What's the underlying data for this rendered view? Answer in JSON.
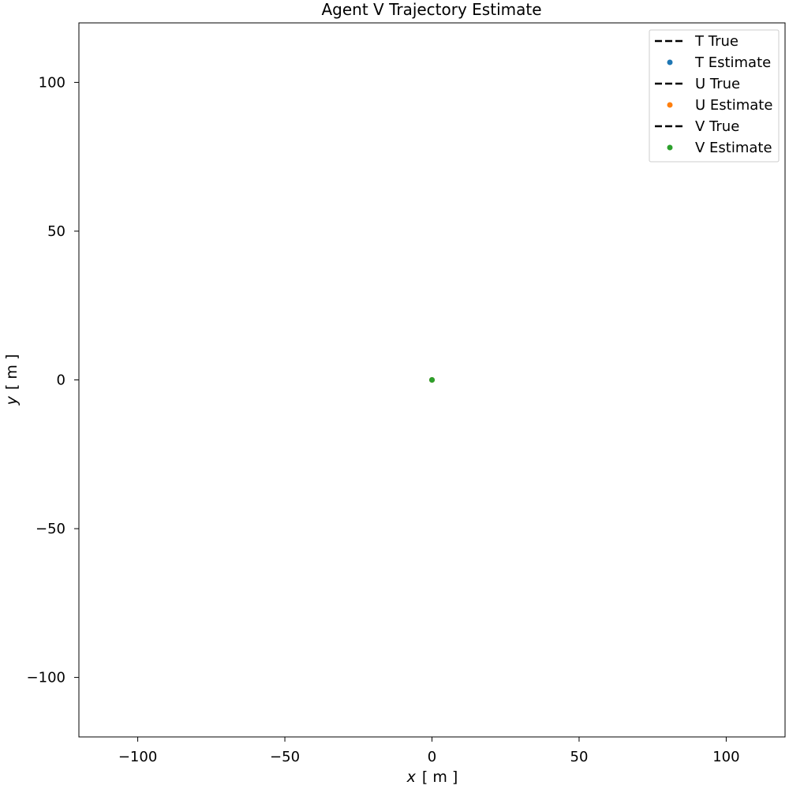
{
  "chart_data": {
    "type": "scatter",
    "title": "Agent V Trajectory Estimate",
    "xlabel": {
      "var": "x",
      "unit": "[ m ]"
    },
    "ylabel": {
      "var": "y",
      "unit": "[ m ]"
    },
    "xlim": [
      -120,
      120
    ],
    "ylim": [
      -120,
      120
    ],
    "xticks": [
      -100,
      -50,
      0,
      50,
      100
    ],
    "yticks": [
      -100,
      -50,
      0,
      50,
      100
    ],
    "xtick_labels": [
      "−100",
      "−50",
      "0",
      "50",
      "100"
    ],
    "ytick_labels": [
      "−100",
      "−50",
      "0",
      "50",
      "100"
    ],
    "grid": false,
    "legend_position": "top-right",
    "series": [
      {
        "name": "T True",
        "kind": "line",
        "style": "dashed",
        "color": "#000000",
        "points": [
          [
            0,
            0
          ]
        ]
      },
      {
        "name": "T Estimate",
        "kind": "marker",
        "color": "#1f77b4",
        "points": [
          [
            0,
            0
          ]
        ]
      },
      {
        "name": "U True",
        "kind": "line",
        "style": "dashed",
        "color": "#000000",
        "points": [
          [
            0,
            0
          ]
        ]
      },
      {
        "name": "U Estimate",
        "kind": "marker",
        "color": "#ff7f0e",
        "points": [
          [
            0,
            0
          ]
        ]
      },
      {
        "name": "V True",
        "kind": "line",
        "style": "dashed",
        "color": "#000000",
        "points": [
          [
            0,
            0
          ]
        ]
      },
      {
        "name": "V Estimate",
        "kind": "marker",
        "color": "#2ca02c",
        "points": [
          [
            0,
            0
          ]
        ]
      }
    ]
  }
}
